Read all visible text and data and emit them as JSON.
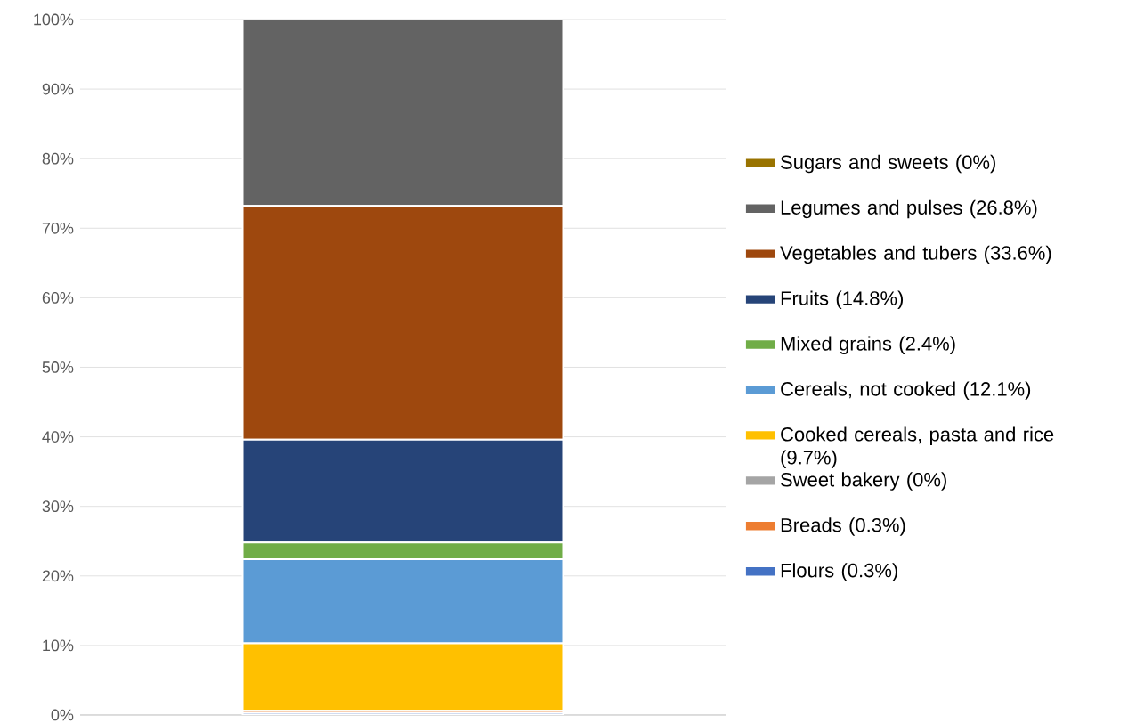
{
  "chart_data": {
    "type": "bar",
    "stacked": true,
    "categories": [
      null
    ],
    "series": [
      {
        "name": "Flours (0.3%)",
        "color": "#4472c4",
        "values": [
          0.3
        ]
      },
      {
        "name": "Breads (0.3%)",
        "color": "#ed7d31",
        "values": [
          0.3
        ]
      },
      {
        "name": "Sweet bakery (0%)",
        "color": "#a5a5a5",
        "values": [
          0
        ]
      },
      {
        "name": "Cooked cereals, pasta and rice (9.7%)",
        "color": "#ffc000",
        "values": [
          9.7
        ]
      },
      {
        "name": "Cereals, not cooked (12.1%)",
        "color": "#5b9bd5",
        "values": [
          12.1
        ]
      },
      {
        "name": "Mixed grains (2.4%)",
        "color": "#70ad47",
        "values": [
          2.4
        ]
      },
      {
        "name": "Fruits (14.8%)",
        "color": "#264478",
        "values": [
          14.8
        ]
      },
      {
        "name": "Vegetables and tubers (33.6%)",
        "color": "#9e480e",
        "values": [
          33.6
        ]
      },
      {
        "name": "Legumes and pulses (26.8%)",
        "color": "#636363",
        "values": [
          26.8
        ]
      },
      {
        "name": "Sugars and sweets (0%)",
        "color": "#997300",
        "values": [
          0
        ]
      }
    ],
    "ylim": [
      0,
      100
    ],
    "yticks": [
      {
        "value": 0,
        "label": "0%"
      },
      {
        "value": 10,
        "label": "10%"
      },
      {
        "value": 20,
        "label": "20%"
      },
      {
        "value": 30,
        "label": "30%"
      },
      {
        "value": 40,
        "label": "40%"
      },
      {
        "value": 50,
        "label": "50%"
      },
      {
        "value": 60,
        "label": "60%"
      },
      {
        "value": 70,
        "label": "70%"
      },
      {
        "value": 80,
        "label": "80%"
      },
      {
        "value": 90,
        "label": "90%"
      },
      {
        "value": 100,
        "label": "100%"
      }
    ],
    "grid": "y",
    "legend": "right"
  }
}
